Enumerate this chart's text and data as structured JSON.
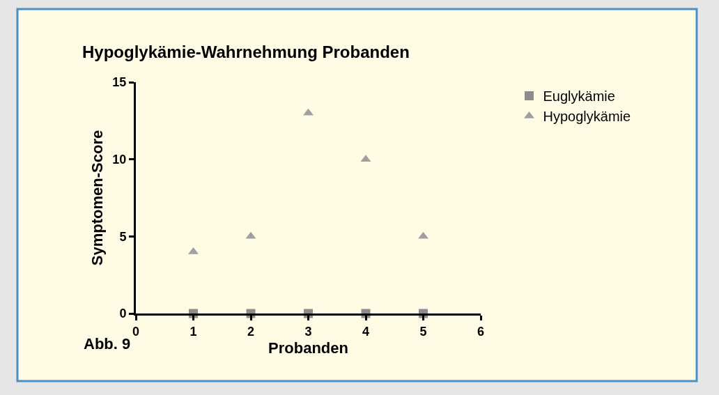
{
  "chart_data": {
    "type": "scatter",
    "title": "Hypoglykämie-Wahrnehmung Probanden",
    "xlabel": "Probanden",
    "ylabel": "Symptomen-Score",
    "annotations": [
      "Abb. 9"
    ],
    "x": [
      1,
      2,
      3,
      4,
      5
    ],
    "series": [
      {
        "name": "Euglykämie",
        "color": "#8c8c8c",
        "marker": "square",
        "values": [
          0,
          0,
          0,
          0,
          0
        ]
      },
      {
        "name": "Hypoglykämie",
        "color": "#a0a0a0",
        "marker": "triangle",
        "values": [
          4,
          5,
          13,
          10,
          5
        ]
      }
    ],
    "xlim": [
      0,
      6
    ],
    "xticks": [
      0,
      1,
      2,
      3,
      4,
      5,
      6
    ],
    "ylim": [
      0,
      15
    ],
    "yticks": [
      0,
      5,
      10,
      15
    ],
    "grid": false,
    "legend": "top right"
  }
}
